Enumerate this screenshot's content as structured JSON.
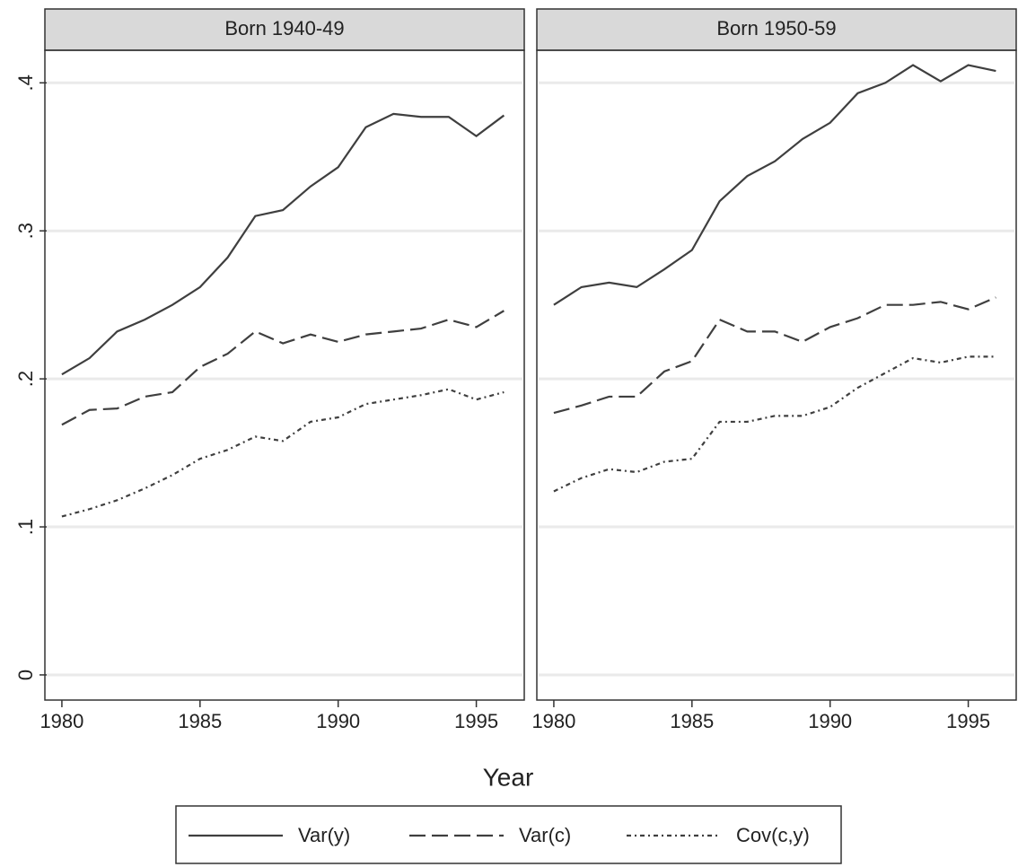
{
  "chart_data": [
    {
      "type": "line",
      "title": "Born 1940-49",
      "xlabel": "Year",
      "x": [
        1980,
        1981,
        1982,
        1983,
        1984,
        1985,
        1986,
        1987,
        1988,
        1989,
        1990,
        1991,
        1992,
        1993,
        1994,
        1995,
        1996
      ],
      "xlim": [
        1979.45,
        1996.67
      ],
      "xticks": [
        1980,
        1985,
        1990,
        1995
      ],
      "ylim": [
        -0.017,
        0.422
      ],
      "yticks": [
        0,
        {
          "value": 0.1,
          "label": ".1"
        },
        {
          "value": 0.2,
          "label": ".2"
        },
        {
          "value": 0.3,
          "label": ".3"
        },
        {
          "value": 0.4,
          "label": ".4"
        }
      ],
      "grid": true,
      "series": [
        {
          "name": "Var(y)",
          "color": "#3f3f3f",
          "dash": "none",
          "values": [
            0.203,
            0.214,
            0.232,
            0.24,
            0.25,
            0.262,
            0.282,
            0.31,
            0.314,
            0.33,
            0.343,
            0.37,
            0.379,
            0.377,
            0.377,
            0.364,
            0.378
          ]
        },
        {
          "name": "Var(c)",
          "color": "#3f3f3f",
          "dash": "18 7",
          "values": [
            0.169,
            0.179,
            0.18,
            0.188,
            0.191,
            0.208,
            0.217,
            0.232,
            0.224,
            0.23,
            0.225,
            0.23,
            0.232,
            0.234,
            0.24,
            0.235,
            0.246
          ]
        },
        {
          "name": "Cov(c,y)",
          "color": "#3f3f3f",
          "dash": "5 4 2 4",
          "values": [
            0.107,
            0.112,
            0.118,
            0.126,
            0.135,
            0.146,
            0.152,
            0.161,
            0.158,
            0.171,
            0.174,
            0.183,
            0.186,
            0.189,
            0.193,
            0.186,
            0.191
          ]
        }
      ]
    },
    {
      "type": "line",
      "title": "Born 1950-59",
      "x": [
        1980,
        1981,
        1982,
        1983,
        1984,
        1985,
        1986,
        1987,
        1988,
        1989,
        1990,
        1991,
        1992,
        1993,
        1994,
        1995,
        1996
      ],
      "xlim": [
        1979.45,
        1996.67
      ],
      "xticks": [
        1980,
        1985,
        1990,
        1995
      ],
      "ylim": [
        -0.017,
        0.422
      ],
      "yticks": [
        0,
        0.1,
        0.2,
        0.3,
        0.4
      ],
      "grid": true,
      "series": [
        {
          "values": [
            0.25,
            0.262,
            0.265,
            0.262,
            0.274,
            0.287,
            0.32,
            0.337,
            0.347,
            0.362,
            0.373,
            0.393,
            0.4,
            0.412,
            0.401,
            0.412,
            0.408
          ]
        },
        {
          "values": [
            0.177,
            0.182,
            0.188,
            0.188,
            0.205,
            0.212,
            0.24,
            0.232,
            0.232,
            0.225,
            0.235,
            0.241,
            0.25,
            0.25,
            0.252,
            0.247,
            0.255
          ]
        },
        {
          "values": [
            0.124,
            0.133,
            0.139,
            0.137,
            0.144,
            0.146,
            0.171,
            0.171,
            0.175,
            0.175,
            0.181,
            0.194,
            0.204,
            0.214,
            0.211,
            0.215,
            0.215
          ]
        }
      ]
    }
  ]
}
